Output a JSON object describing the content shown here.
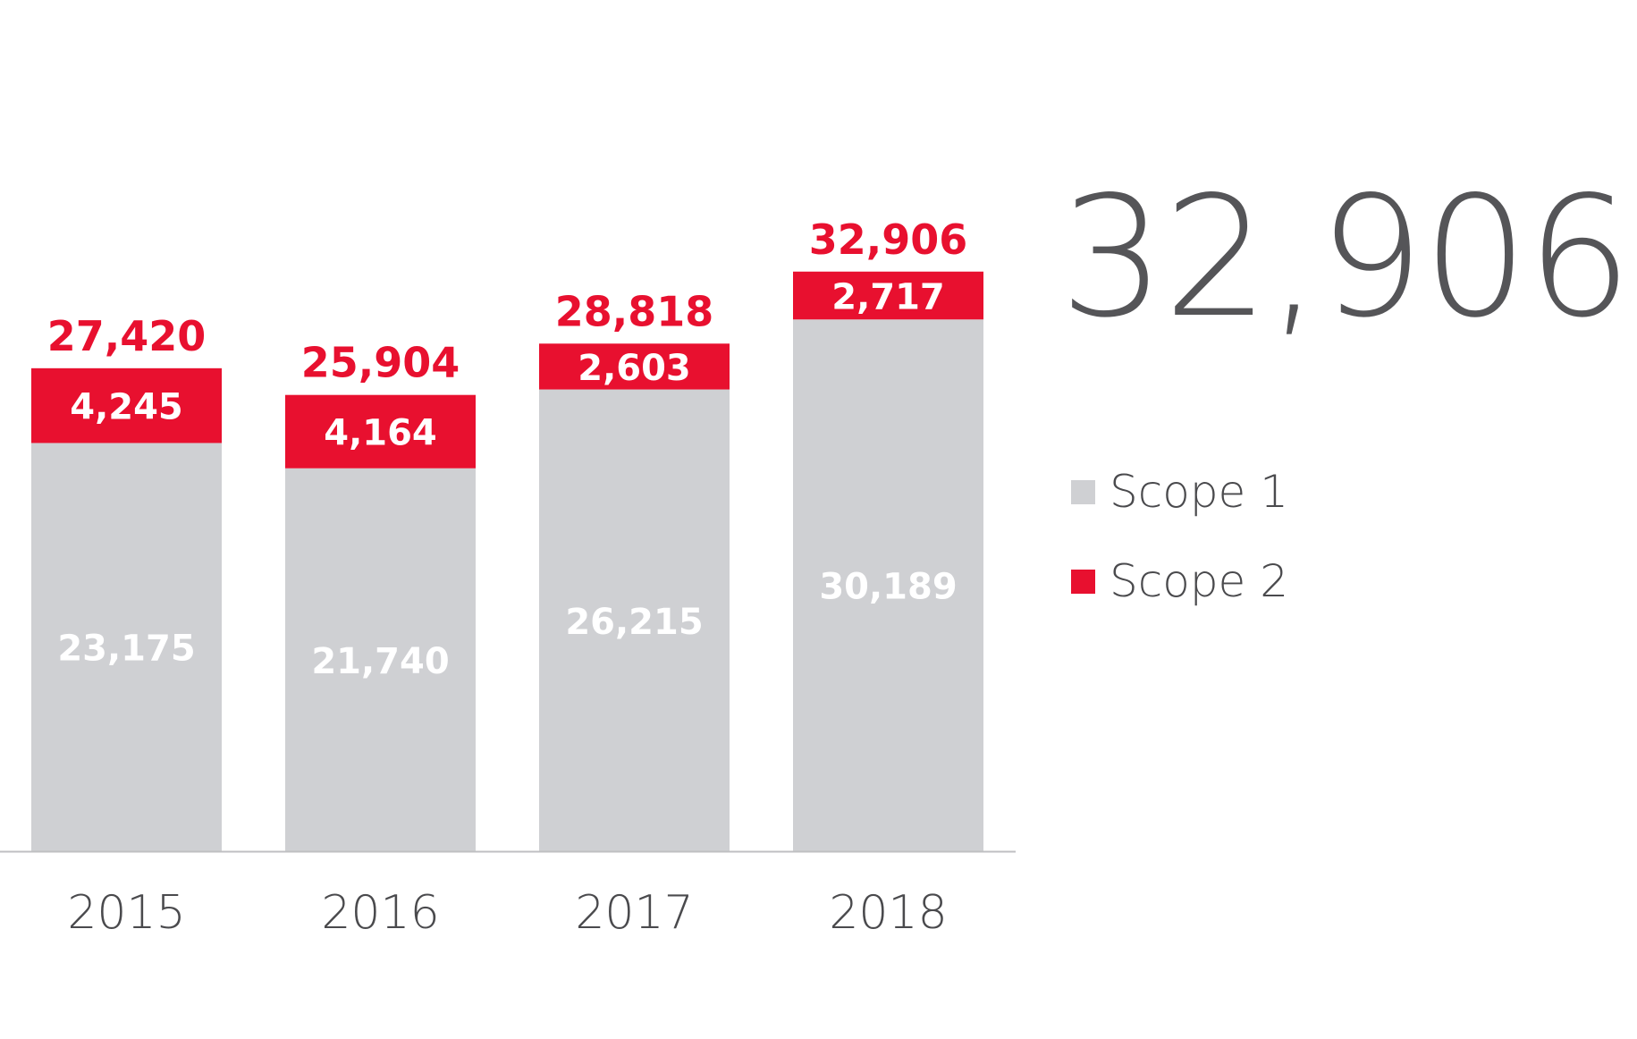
{
  "headline_value": "32,906",
  "colors": {
    "scope1": "#cfd0d3",
    "scope2": "#e8102f",
    "total_label": "#e8102f",
    "inner_label": "#ffffff",
    "axis_label": "#4a4a4d",
    "baseline": "#bfbfc2"
  },
  "legend": [
    {
      "label": "Scope 1",
      "color": "#cfd0d3"
    },
    {
      "label": "Scope 2",
      "color": "#e8102f"
    }
  ],
  "chart_data": {
    "type": "bar",
    "stacked": true,
    "categories": [
      "2015",
      "2016",
      "2017",
      "2018"
    ],
    "series": [
      {
        "name": "Scope 1",
        "values": [
          23175,
          21740,
          26215,
          30189
        ],
        "labels": [
          "23,175",
          "21,740",
          "26,215",
          "30,189"
        ]
      },
      {
        "name": "Scope 2",
        "values": [
          4245,
          4164,
          2603,
          2717
        ],
        "labels": [
          "4,245",
          "4,164",
          "2,603",
          "2,717"
        ]
      }
    ],
    "totals": [
      27420,
      25904,
      28818,
      32906
    ],
    "total_labels": [
      "27,420",
      "25,904",
      "28,818",
      "32,906"
    ],
    "title": "",
    "xlabel": "",
    "ylabel": "",
    "ylim": [
      0,
      35000
    ],
    "grid": false,
    "legend_position": "right"
  }
}
